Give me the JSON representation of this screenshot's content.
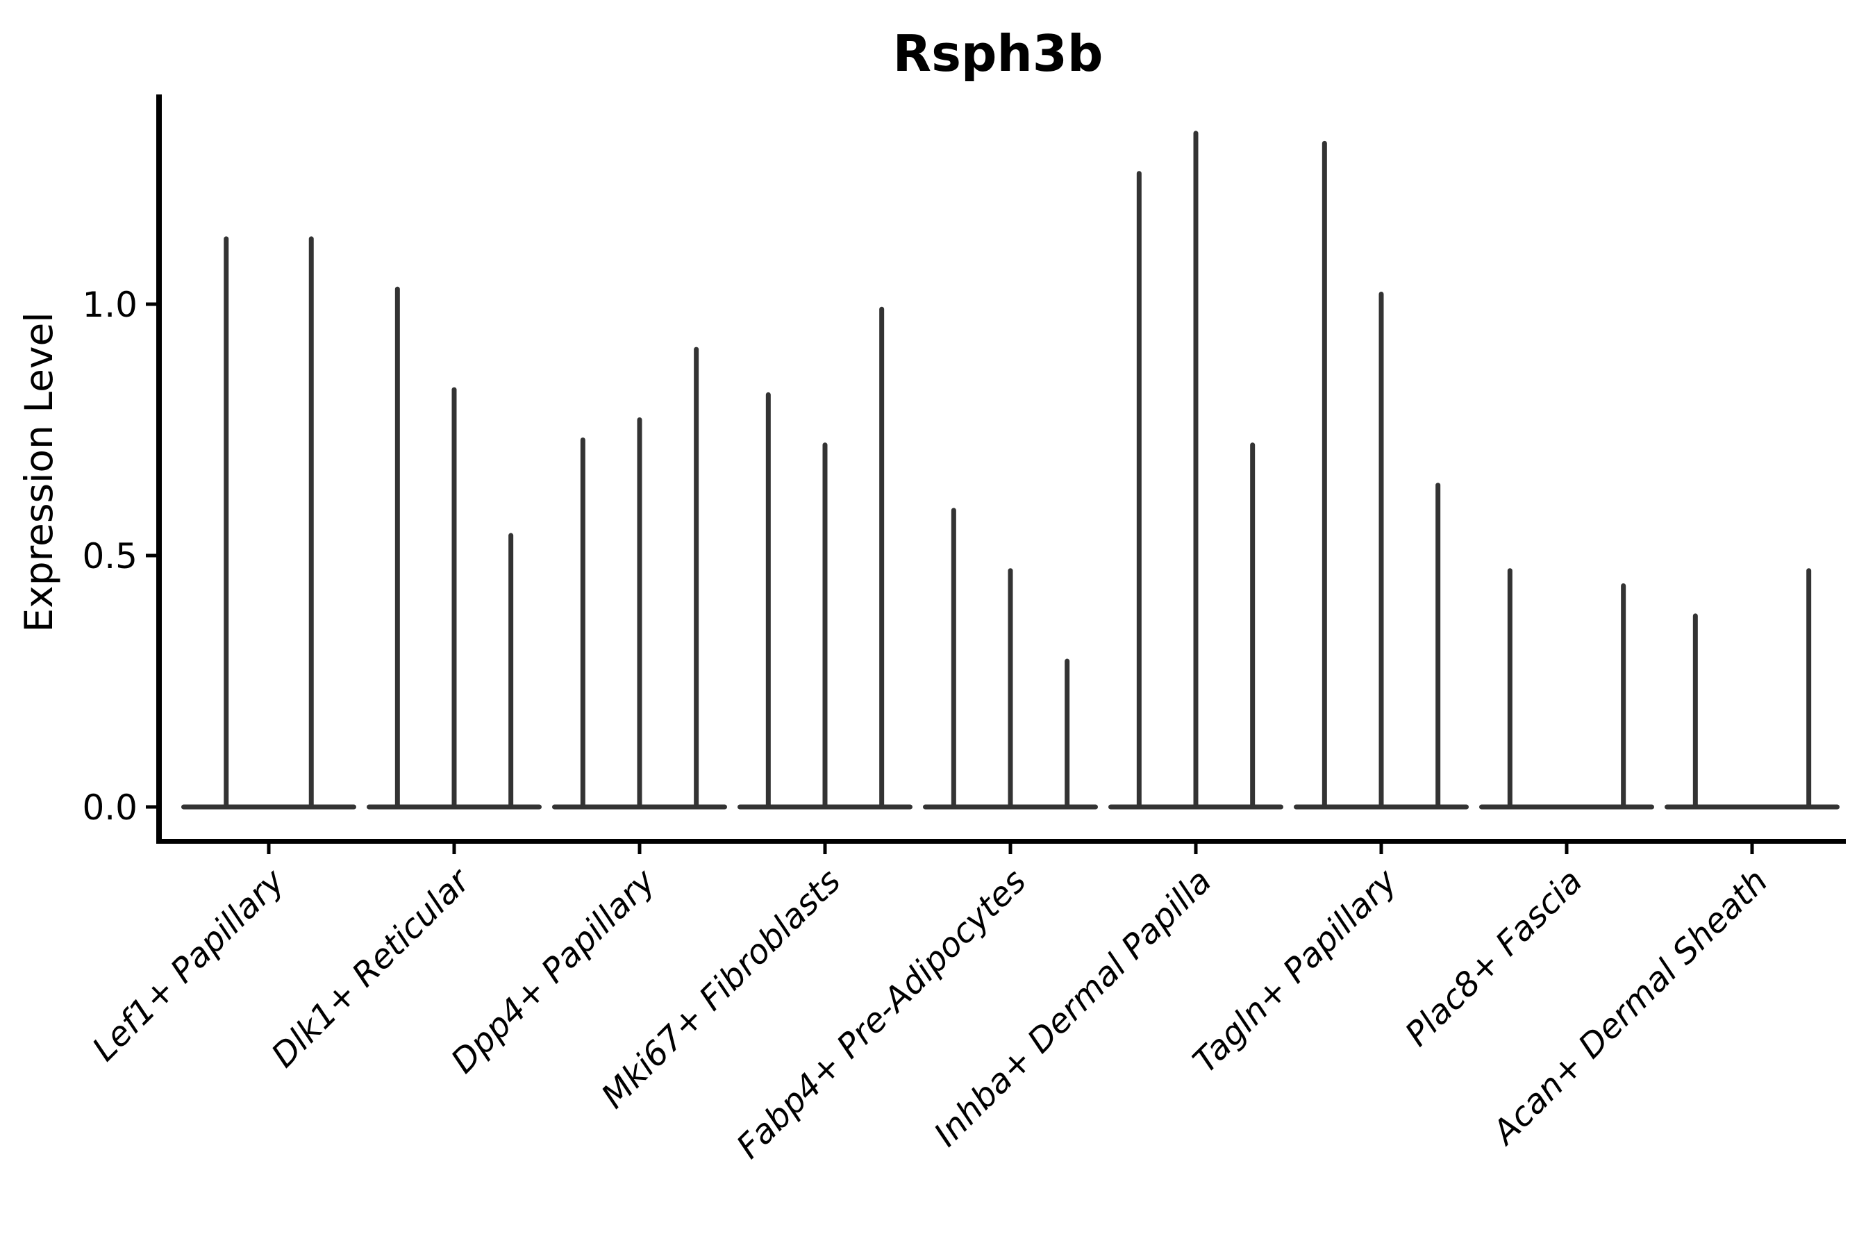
{
  "figure": {
    "title": "Rsph3b",
    "y_axis": {
      "label": "Expression Level",
      "ticks": [
        {
          "value": 0.0,
          "label": "0.0"
        },
        {
          "value": 0.5,
          "label": "0.5"
        },
        {
          "value": 1.0,
          "label": "1.0"
        }
      ]
    },
    "colors": {
      "violin": "#333333",
      "axis": "#000000",
      "text": "#000000",
      "background": "#ffffff"
    }
  },
  "chart_data": {
    "type": "violin",
    "title": "Rsph3b",
    "xlabel": "",
    "ylabel": "Expression Level",
    "ylim": [
      -0.07,
      1.41
    ],
    "yticks": [
      0.0,
      0.5,
      1.0
    ],
    "grid": false,
    "legend": null,
    "description": "Violin plot of Rsph3b expression; each category holds 2-3 near-zero-width violins (spikes) with flat bases at 0. Values are the max expression (spike top) per violin; 0 means a flat violin with no spike.",
    "categories": [
      "Lef1+ Papillary",
      "Dlk1+ Reticular",
      "Dpp4+ Papillary",
      "Mki67+ Fibroblasts",
      "Fabp4+ Pre-Adipocytes",
      "Inhba+ Dermal Papilla",
      "Tagln+ Papillary",
      "Plac8+ Fascia",
      "Acan+ Dermal Sheath"
    ],
    "groups": [
      {
        "label": "Lef1+ Papillary",
        "violins": [
          1.13,
          1.13
        ]
      },
      {
        "label": "Dlk1+ Reticular",
        "violins": [
          1.03,
          0.83,
          0.54
        ]
      },
      {
        "label": "Dpp4+ Papillary",
        "violins": [
          0.73,
          0.77,
          0.91
        ]
      },
      {
        "label": "Mki67+ Fibroblasts",
        "violins": [
          0.82,
          0.72,
          0.99
        ]
      },
      {
        "label": "Fabp4+ Pre-Adipocytes",
        "violins": [
          0.59,
          0.47,
          0.29
        ]
      },
      {
        "label": "Inhba+ Dermal Papilla",
        "violins": [
          1.26,
          1.34,
          0.72
        ]
      },
      {
        "label": "Tagln+ Papillary",
        "violins": [
          1.32,
          1.02,
          0.64
        ]
      },
      {
        "label": "Plac8+ Fascia",
        "violins": [
          0.47,
          0.0,
          0.44
        ]
      },
      {
        "label": "Acan+ Dermal Sheath",
        "violins": [
          0.38,
          0.0,
          0.47
        ]
      }
    ]
  }
}
